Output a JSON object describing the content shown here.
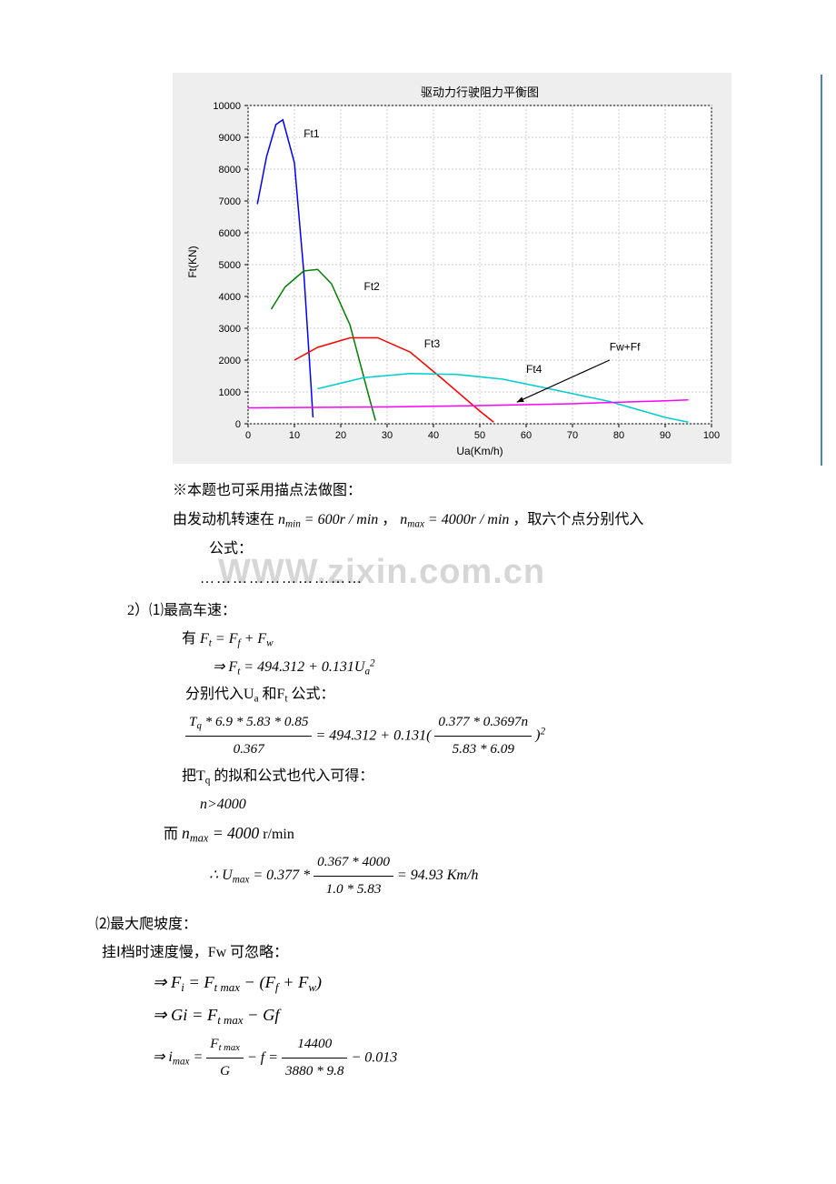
{
  "watermark": "WWW.zixin.com.cn",
  "chart": {
    "type": "line",
    "title": "驱动力行驶阻力平衡图",
    "xlabel": "Ua(Km/h)",
    "ylabel": "Ft(KN)",
    "xlim": [
      0,
      100
    ],
    "ylim": [
      0,
      10000
    ],
    "xticks": [
      0,
      10,
      20,
      30,
      40,
      50,
      60,
      70,
      80,
      90,
      100
    ],
    "yticks": [
      0,
      1000,
      2000,
      3000,
      4000,
      5000,
      6000,
      7000,
      8000,
      9000,
      10000
    ],
    "background_color": "#ffffff",
    "container_bg": "#eeeeee",
    "grid_color": "#cccccc",
    "axis_color": "#000000",
    "title_fontsize": 13,
    "label_fontsize": 12,
    "tick_fontsize": 11,
    "series": [
      {
        "name": "Ft1",
        "label": "Ft1",
        "color": "#0000ff",
        "label_pos": [
          12,
          9000
        ],
        "points": [
          [
            2,
            6900
          ],
          [
            4,
            8400
          ],
          [
            6,
            9400
          ],
          [
            7.5,
            9550
          ],
          [
            10,
            8200
          ],
          [
            12,
            4800
          ],
          [
            13.5,
            1400
          ],
          [
            14,
            200
          ]
        ]
      },
      {
        "name": "Ft2",
        "label": "Ft2",
        "color": "#008000",
        "label_pos": [
          25,
          4200
        ],
        "points": [
          [
            5,
            3600
          ],
          [
            8,
            4300
          ],
          [
            12,
            4800
          ],
          [
            15,
            4850
          ],
          [
            18,
            4400
          ],
          [
            22,
            3100
          ],
          [
            26,
            900
          ],
          [
            27.5,
            100
          ]
        ]
      },
      {
        "name": "Ft3",
        "label": "Ft3",
        "color": "#ff0000",
        "label_pos": [
          38,
          2400
        ],
        "points": [
          [
            10,
            2000
          ],
          [
            15,
            2400
          ],
          [
            22,
            2700
          ],
          [
            28,
            2700
          ],
          [
            35,
            2250
          ],
          [
            42,
            1400
          ],
          [
            50,
            400
          ],
          [
            53,
            50
          ]
        ]
      },
      {
        "name": "Ft4",
        "label": "Ft4",
        "color": "#00cccc",
        "label_pos": [
          60,
          1600
        ],
        "points": [
          [
            15,
            1100
          ],
          [
            25,
            1450
          ],
          [
            35,
            1580
          ],
          [
            45,
            1550
          ],
          [
            55,
            1400
          ],
          [
            65,
            1100
          ],
          [
            78,
            700
          ],
          [
            90,
            200
          ],
          [
            95,
            50
          ]
        ]
      },
      {
        "name": "FwFf",
        "label": "Fw+Ff",
        "color": "#ff00ff",
        "label_pos": [
          78,
          2300
        ],
        "points": [
          [
            0,
            500
          ],
          [
            30,
            530
          ],
          [
            50,
            570
          ],
          [
            70,
            630
          ],
          [
            90,
            720
          ],
          [
            95,
            750
          ]
        ]
      }
    ],
    "arrow": {
      "from": [
        78,
        2000
      ],
      "to": [
        58,
        680
      ],
      "color": "#000000"
    }
  },
  "note": {
    "line1": "※本题也可采用描点法做图：",
    "line2_prefix": "由发动机转速在",
    "nmin_label": "n",
    "nmin_sub": "min",
    "nmin_eq": " = 600",
    "nmin_unit": "r / min",
    "comma1": "，",
    "nmax_label": "n",
    "nmax_sub": "max",
    "nmax_eq": " = 4000",
    "nmax_unit": "r / min",
    "line2_suffix": "，取六个点分别代入",
    "line3": "公式：",
    "dots": "…………………………"
  },
  "sec2": {
    "heading": "2）⑴最高车速：",
    "line_has": "有",
    "eq1": "F<sub>t</sub> = F<sub>f</sub> + F<sub>w</sub>",
    "eq2_arrow": "⇒ F<sub>t</sub> = 494.312 + 0.131U<sub>a</sub><sup>2</sup>",
    "line_sub": "分别代入U<sub>a</sub> 和F<sub>t</sub> 公式：",
    "frac1_num": "T<sub>q</sub> * 6.9 * 5.83 * 0.85",
    "frac1_den": "0.367",
    "eq3_mid": " = 494.312 + 0.131(",
    "frac2_num": "0.377 * 0.3697n",
    "frac2_den": "5.83 * 6.09",
    "eq3_end": ")<sup>2</sup>",
    "line_tq": "把T<sub>q</sub> 的拟和公式也代入可得：",
    "n_result": "n&gt;4000",
    "line_while": "而 ",
    "nmax_expr": "n<sub>max</sub> = 4000",
    "nmax_unit": " r/min",
    "therefore": "∴ U<sub>max</sub> = 0.377 * ",
    "frac3_num": "0.367 * 4000",
    "frac3_den": "1.0 * 5.83",
    "umax_result": " = 94.93  Km/h"
  },
  "sec3": {
    "heading": "⑵最大爬坡度：",
    "line1": "挂Ⅰ档时速度慢，Fw 可忽略：",
    "eq1": "⇒ F<sub>i</sub> = F<sub>t max</sub> − (F<sub>f</sub> + F<sub>w</sub>)",
    "eq2": "⇒ Gi = F<sub>t max</sub> − Gf",
    "eq3_lead": "⇒ i<sub>max</sub> = ",
    "frac1_num": "F<sub>t max</sub>",
    "frac1_den": "G",
    "eq3_mid": " − f = ",
    "frac2_num": "14400",
    "frac2_den": "3880 * 9.8",
    "eq3_end": " − 0.013"
  }
}
